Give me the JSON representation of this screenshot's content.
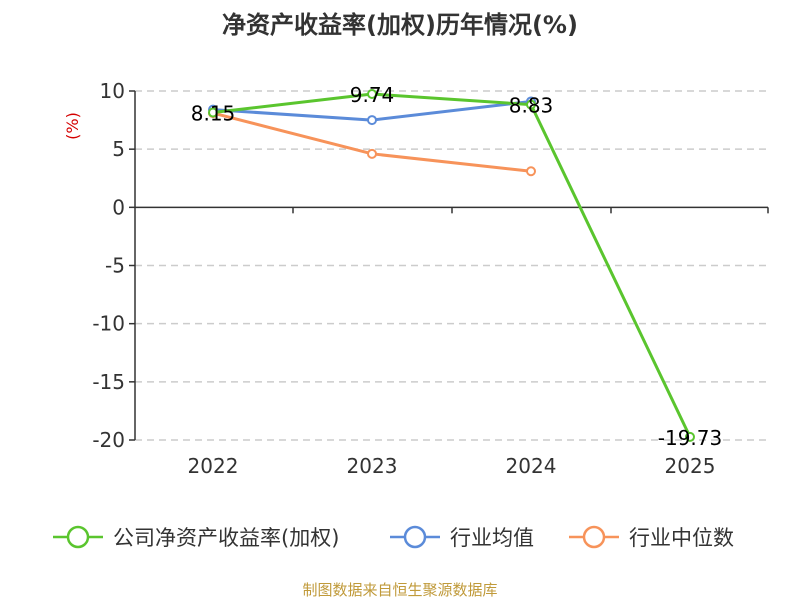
{
  "chart_data": {
    "type": "line",
    "title": "净资产收益率(加权)历年情况(%)",
    "ylabel": "(%)",
    "categories": [
      "2022",
      "2023",
      "2024",
      "2025"
    ],
    "ylim": [
      -20,
      10
    ],
    "yticks": [
      10,
      5,
      0,
      -5,
      -10,
      -15,
      -20
    ],
    "series": [
      {
        "name": "公司净资产收益率(加权)",
        "color": "#5ac52e",
        "values": [
          8.15,
          9.74,
          8.83,
          -19.73
        ],
        "labels": [
          "8.15",
          "9.74",
          "8.83",
          "-19.73"
        ]
      },
      {
        "name": "行业均值",
        "color": "#5b8bd9",
        "values": [
          8.4,
          7.5,
          9.1,
          null
        ]
      },
      {
        "name": "行业中位数",
        "color": "#f7935a",
        "values": [
          8.1,
          4.6,
          3.1,
          null
        ]
      }
    ],
    "source": "制图数据来自恒生聚源数据库"
  }
}
